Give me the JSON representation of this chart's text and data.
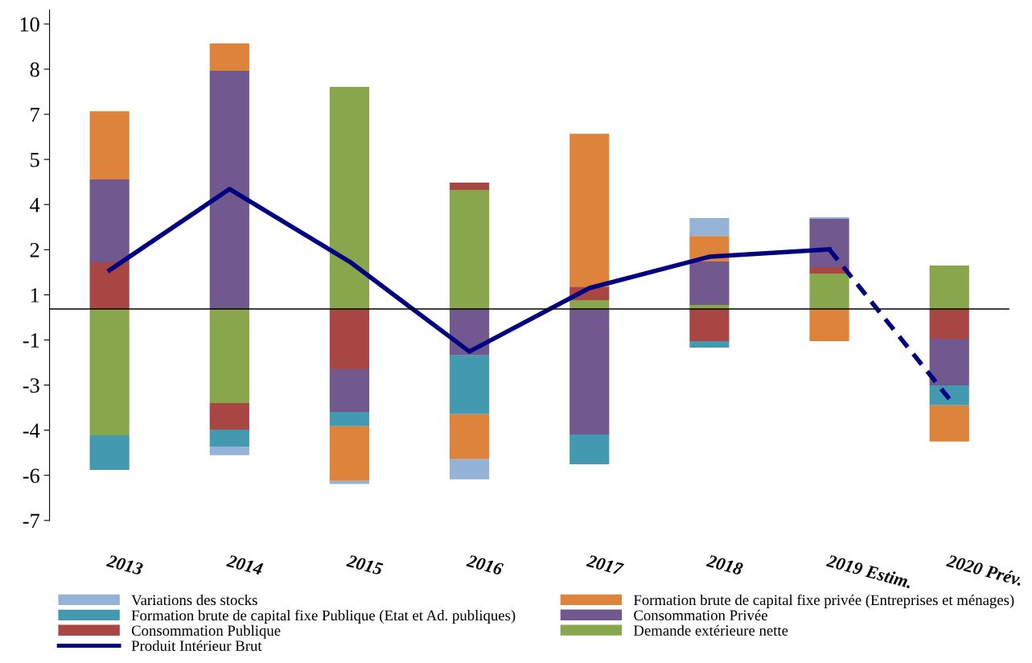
{
  "chart_data": {
    "type": "bar",
    "stacked": true,
    "categories": [
      "2013",
      "2014",
      "2015",
      "2016",
      "2017",
      "2018",
      "2019 Estim.",
      "2020 Prév."
    ],
    "series": [
      {
        "name": "Demande extérieure nette",
        "color": "#88a64c",
        "values": [
          -4.48,
          -3.34,
          7.87,
          4.22,
          0.31,
          0.14,
          1.25,
          1.54
        ]
      },
      {
        "name": "Consommation Publique",
        "color": "#a84643",
        "values": [
          1.65,
          -0.94,
          -2.14,
          0.26,
          0.48,
          -1.14,
          0.23,
          -1.06
        ]
      },
      {
        "name": "Consommation Privée",
        "color": "#71588f",
        "values": [
          2.94,
          8.44,
          -1.51,
          -1.65,
          -4.45,
          1.54,
          1.71,
          -1.65
        ]
      },
      {
        "name": "Formation brute de capital fixe Publique (Etat et Ad. publiques)",
        "color": "#4399b0",
        "values": [
          -1.23,
          -0.6,
          -0.51,
          -2.08,
          -1.06,
          -0.23,
          null,
          -0.71
        ]
      },
      {
        "name": "Formation brute de capital fixe privée (Entreprises et ménages)",
        "color": "#dd833c",
        "values": [
          2.42,
          0.97,
          -1.94,
          -1.6,
          5.42,
          0.91,
          -1.14,
          -1.28
        ]
      },
      {
        "name": "Variations des stocks",
        "color": "#95b3d7",
        "values": [
          null,
          -0.31,
          -0.11,
          -0.71,
          null,
          0.63,
          0.06,
          null
        ]
      },
      {
        "name": "Produit Intérieur Brut",
        "type": "line",
        "line_style": "solid",
        "color": "#000080",
        "values": [
          1.37,
          4.25,
          1.68,
          -1.51,
          0.74,
          1.85,
          2.11,
          null
        ]
      },
      {
        "type": "line",
        "line_style": "dashed",
        "color": "#000080",
        "values": [
          null,
          null,
          null,
          null,
          null,
          null,
          2.11,
          -3.19
        ]
      }
    ],
    "ylim": [
      -7.5,
      10.6
    ],
    "yticks": [
      {
        "value": 10.1,
        "label": "10"
      },
      {
        "value": 8.5,
        "label": "8"
      },
      {
        "value": 6.9,
        "label": "7"
      },
      {
        "value": 5.3,
        "label": "5"
      },
      {
        "value": 3.7,
        "label": "4"
      },
      {
        "value": 2.1,
        "label": "2"
      },
      {
        "value": 0.5,
        "label": "1"
      },
      {
        "value": -1.1,
        "label": "-1"
      },
      {
        "value": -2.7,
        "label": "-3"
      },
      {
        "value": -4.3,
        "label": "-4"
      },
      {
        "value": -5.9,
        "label": "-6"
      },
      {
        "value": -7.5,
        "label": "-7"
      }
    ],
    "grid": false,
    "legend": "bottom",
    "marker": "none"
  }
}
